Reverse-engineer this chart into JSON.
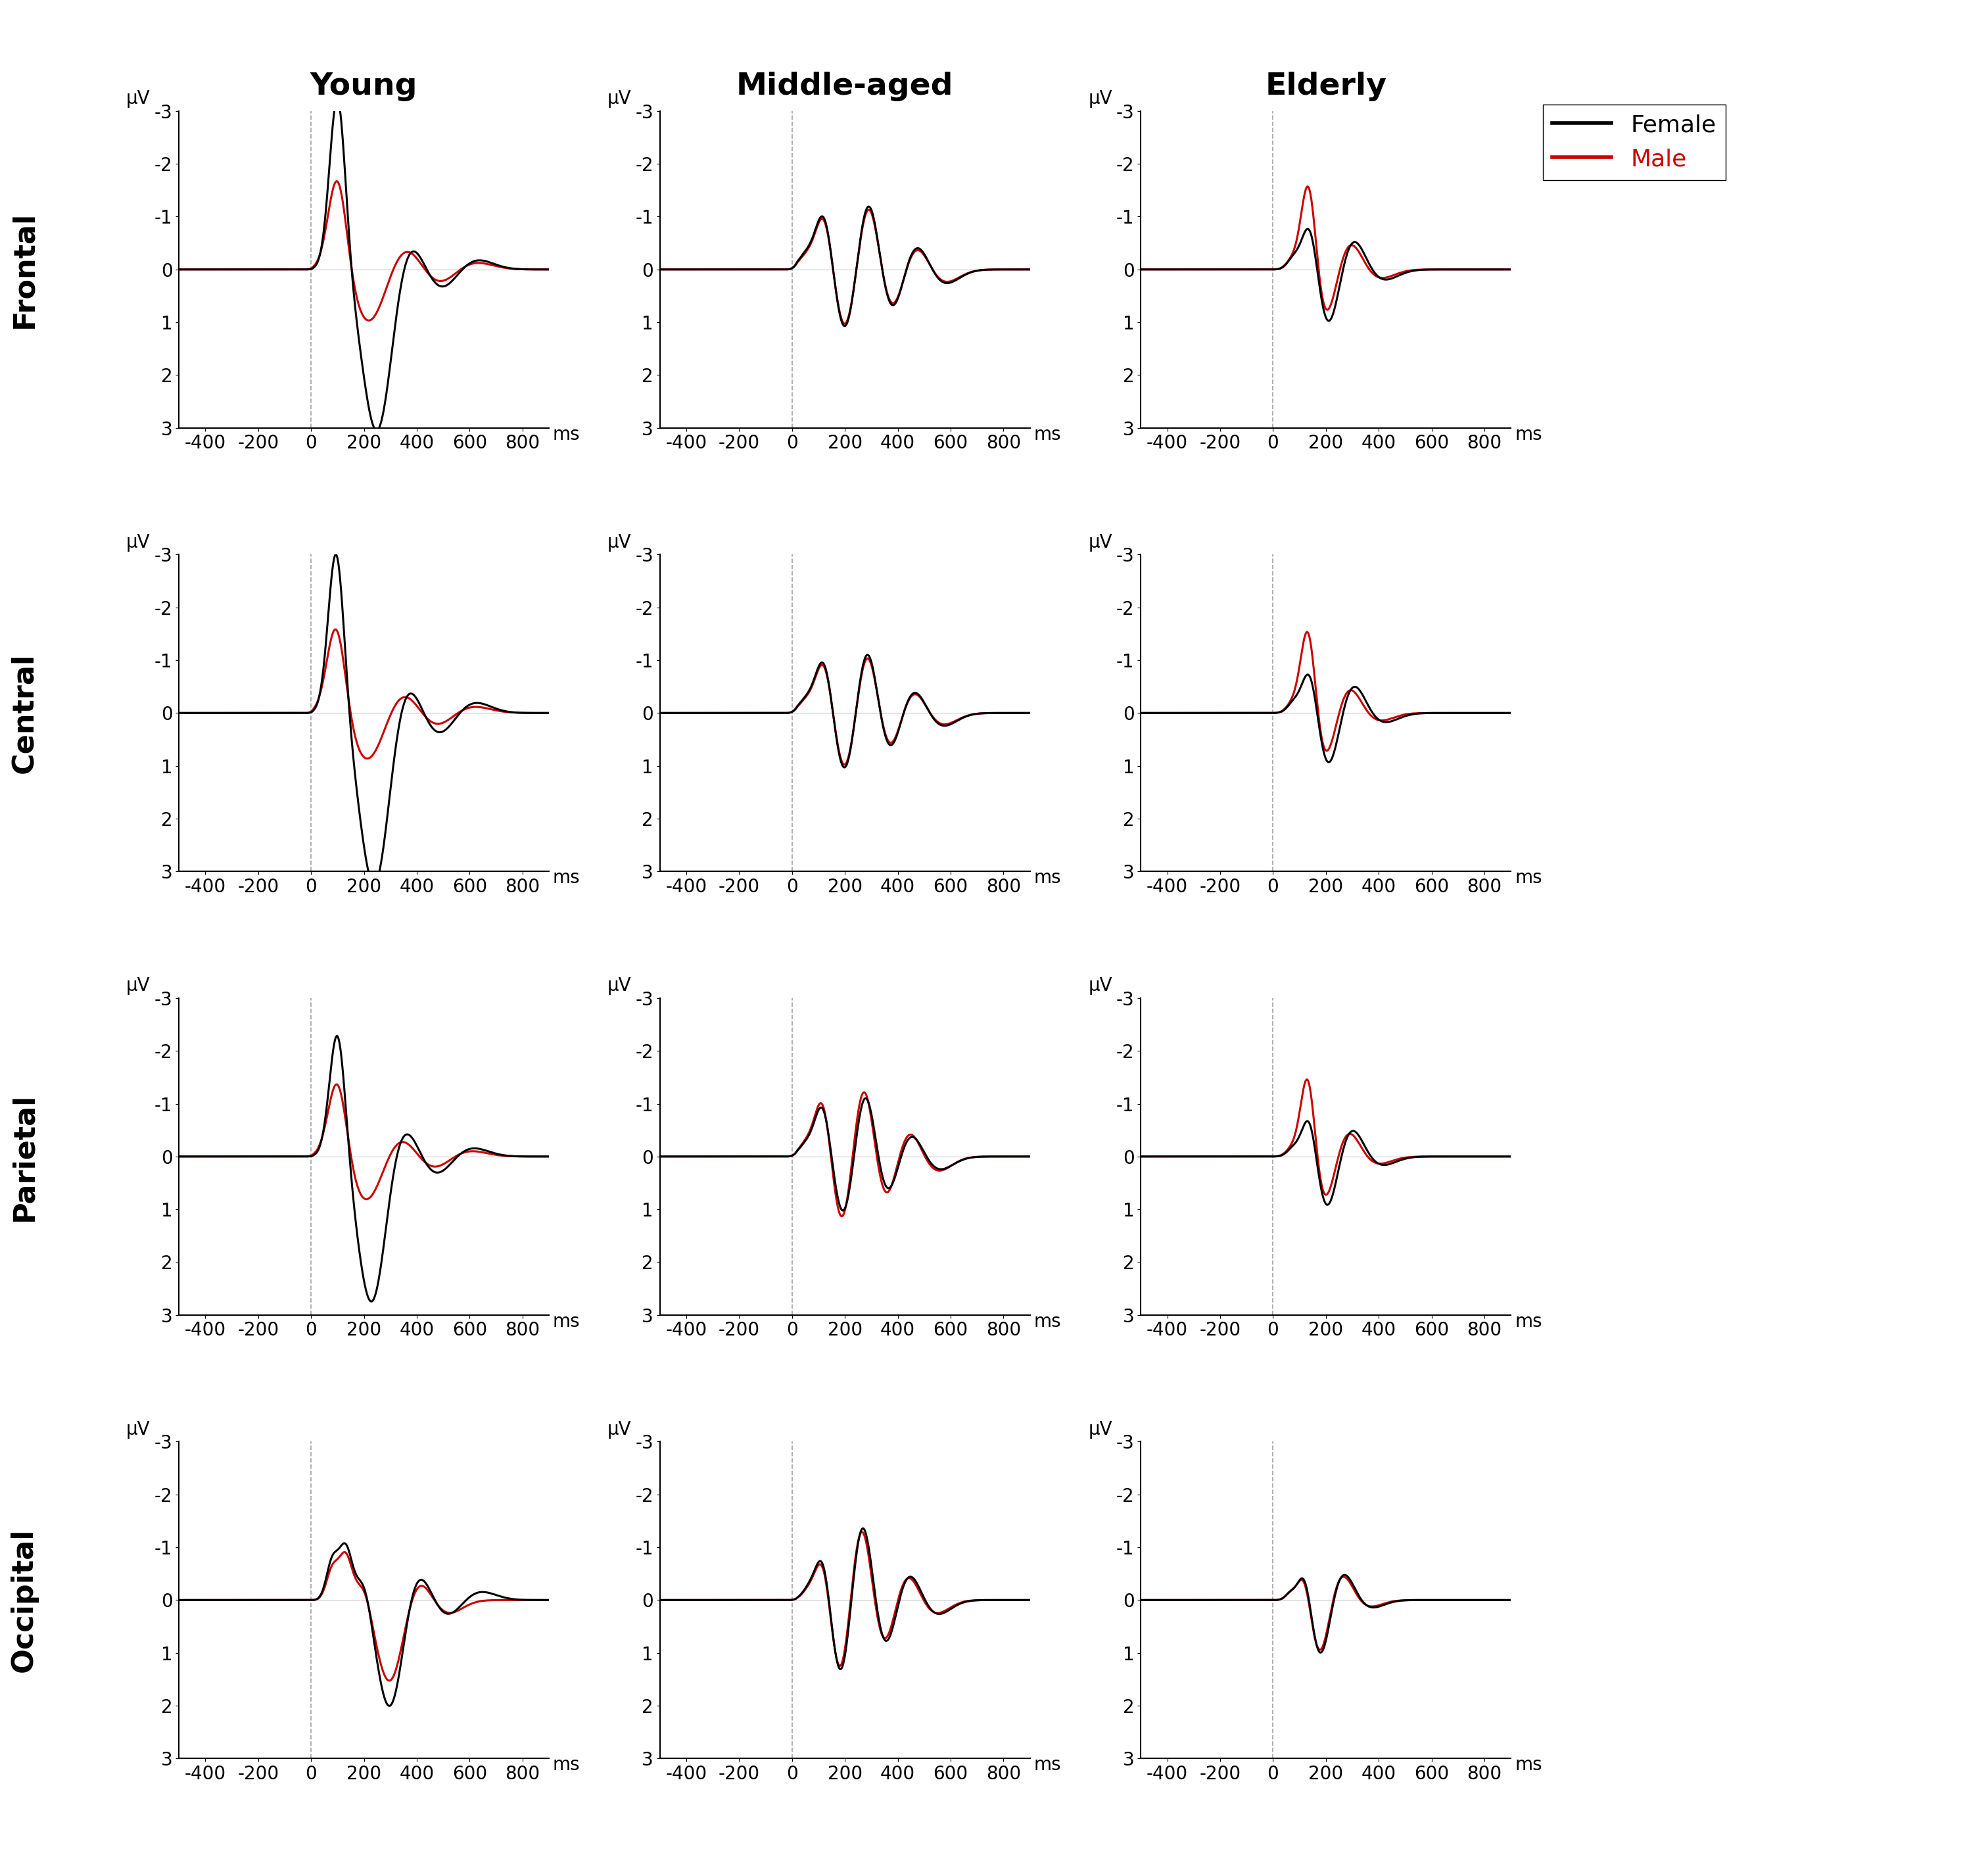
{
  "col_titles": [
    "Young",
    "Middle-aged",
    "Elderly"
  ],
  "row_labels": [
    "Frontal",
    "Central",
    "Parietal",
    "Occipital"
  ],
  "ylabel": "μV",
  "ylim_bottom": 3,
  "ylim_top": -3,
  "ytick_vals": [
    3,
    2,
    1,
    0,
    -1,
    -2,
    -3
  ],
  "ytick_labels": [
    "3",
    "2",
    "1",
    "0",
    "-1",
    "-2",
    "-3"
  ],
  "xtick_vals": [
    -400,
    -200,
    0,
    200,
    400,
    600,
    800
  ],
  "xtick_labels": [
    "-400",
    "-200",
    "0",
    "200",
    "400",
    "600",
    "800"
  ],
  "xmin": -500,
  "xmax": 900,
  "legend_labels": [
    "Female",
    "Male"
  ],
  "female_color": "#000000",
  "male_color": "#cc0000",
  "line_width": 2.2,
  "col_title_fontsize": 34,
  "row_label_fontsize": 32,
  "tick_fontsize": 20,
  "axis_label_fontsize": 20,
  "legend_fontsize": 26,
  "dashed_line_color": "#999999",
  "bg_color": "#ffffff"
}
